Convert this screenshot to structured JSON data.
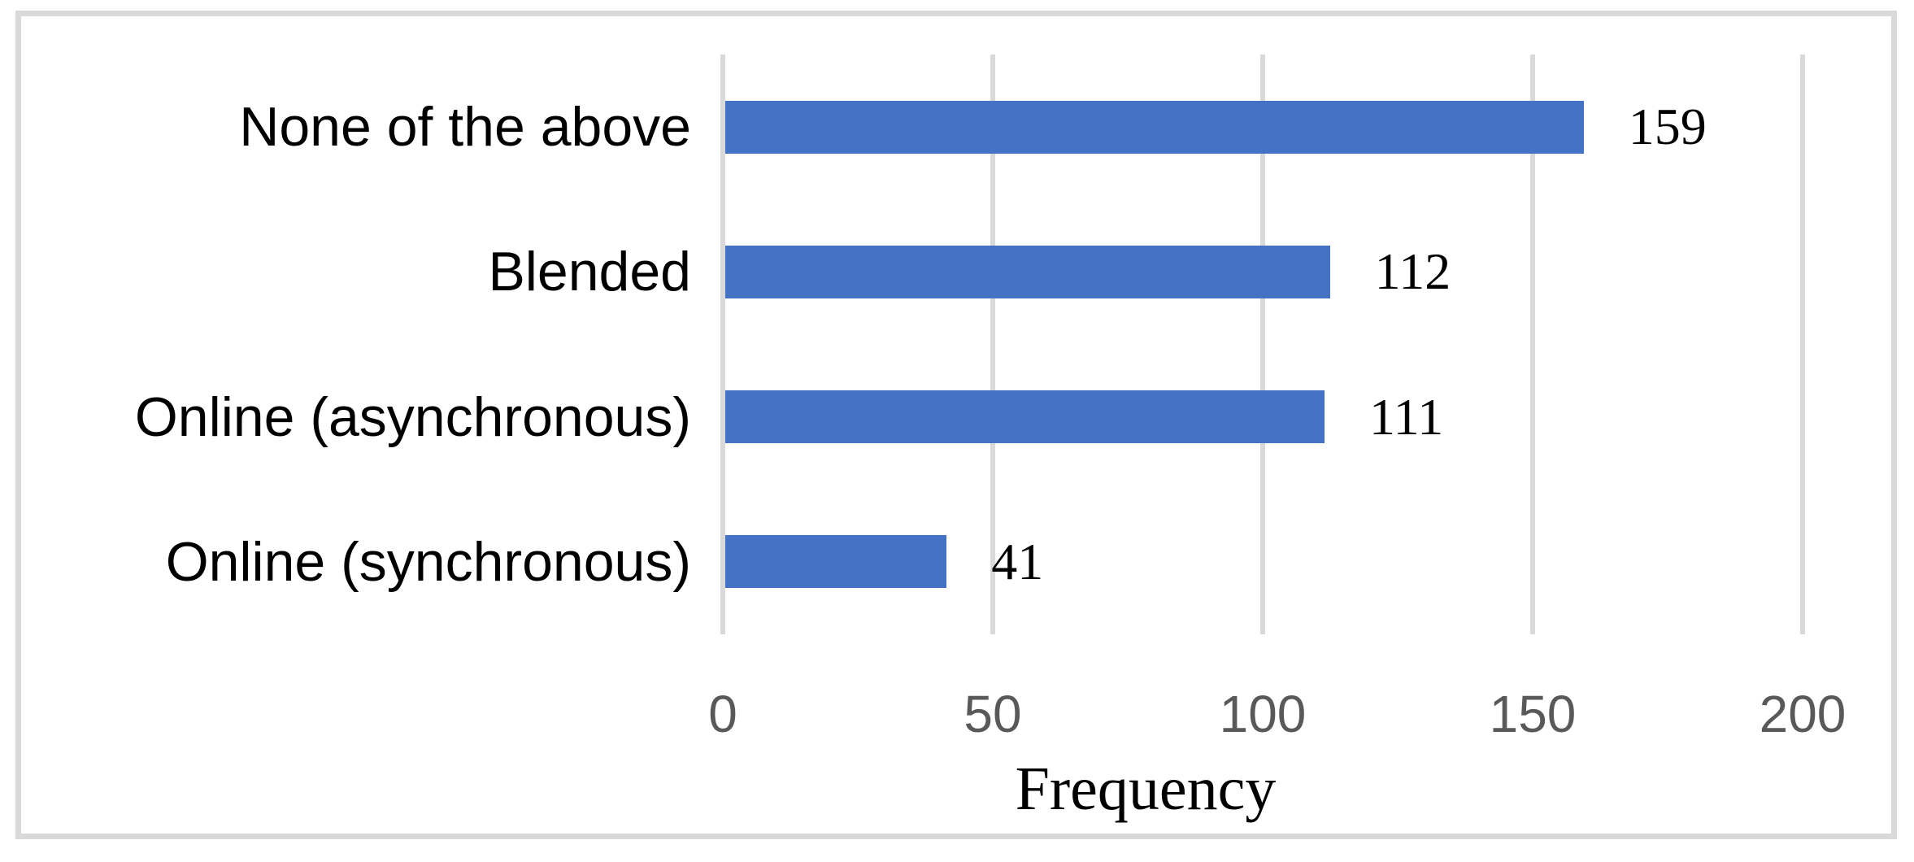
{
  "chart_data": {
    "type": "bar",
    "orientation": "horizontal",
    "row_order": "top-to-bottom",
    "categories": [
      "None of the above",
      "Blended",
      "Online (asynchronous)",
      "Online (synchronous)"
    ],
    "values": [
      159,
      112,
      111,
      41
    ],
    "data_labels": [
      "159",
      "112",
      "111",
      "41"
    ],
    "title": "",
    "xlabel": "Frequency",
    "ylabel": "",
    "x_ticks": [
      "0",
      "50",
      "100",
      "150",
      "200"
    ],
    "xlim": [
      0,
      200
    ],
    "grid": "vertical-gridlines-on",
    "legend": "none",
    "colors": {
      "bar": "#4472C4",
      "gridline": "#D9D9D9",
      "chart_border": "#D9D9D9",
      "tick_label": "#595959",
      "category_label": "#000000",
      "data_label": "#000000",
      "axis_title": "#000000",
      "background": "#FFFFFF"
    }
  }
}
